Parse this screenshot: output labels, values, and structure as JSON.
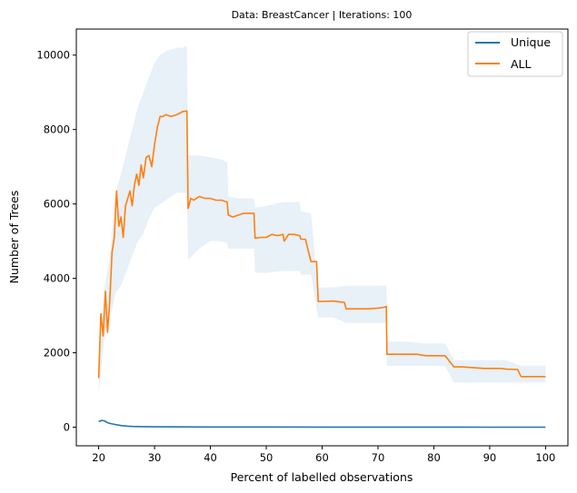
{
  "chart_data": {
    "type": "line",
    "title": "Data: BreastCancer | Iterations: 100",
    "xlabel": "Percent of labelled observations",
    "ylabel": "Number of Trees",
    "xlim": [
      16.0,
      104.0
    ],
    "ylim": [
      -500,
      10700
    ],
    "xticks": [
      20,
      30,
      40,
      50,
      60,
      70,
      80,
      90,
      100
    ],
    "yticks": [
      0,
      2000,
      4000,
      6000,
      8000,
      10000
    ],
    "grid": false,
    "legend": {
      "position": "top-right",
      "entries": [
        "Unique",
        "ALL"
      ]
    },
    "colors": {
      "Unique": "#1f77b4",
      "ALL": "#ff7f0e",
      "band": "#e8f0f8"
    },
    "series": [
      {
        "name": "Unique",
        "x": [
          20,
          20.5,
          21,
          21.5,
          22,
          23,
          24,
          25,
          26,
          28,
          30,
          35,
          40,
          50,
          60,
          70,
          80,
          90,
          100
        ],
        "y": [
          150,
          180,
          170,
          130,
          100,
          70,
          45,
          30,
          20,
          15,
          10,
          8,
          5,
          4,
          3,
          2,
          2,
          1,
          1
        ]
      },
      {
        "name": "ALL",
        "x": [
          20,
          20.4,
          20.8,
          21.2,
          21.6,
          22,
          22.4,
          22.8,
          23.2,
          23.6,
          24,
          24.4,
          24.8,
          25.2,
          25.6,
          26,
          26.4,
          26.8,
          27.2,
          27.6,
          28,
          28.5,
          29,
          29.5,
          30,
          30.5,
          31,
          31.5,
          32,
          33,
          34,
          35,
          35.8,
          36,
          36.5,
          37,
          38,
          39,
          40,
          41,
          42,
          43,
          43.2,
          44,
          45,
          46,
          47.8,
          48,
          49,
          50,
          51,
          52,
          53,
          53.2,
          54,
          55,
          56,
          56.2,
          57,
          58,
          59,
          59.3,
          60,
          62,
          64,
          64.3,
          66,
          68,
          70,
          71,
          71.5,
          71.6,
          73,
          75,
          77,
          78.6,
          80,
          82,
          83.6,
          85,
          87,
          89,
          90,
          92,
          93,
          95,
          95.6,
          98,
          100
        ],
        "y": [
          1320,
          3050,
          2450,
          3650,
          2550,
          3450,
          4700,
          5100,
          6350,
          5400,
          5650,
          5100,
          5950,
          6150,
          6350,
          5950,
          6500,
          6800,
          6500,
          7050,
          6700,
          7250,
          7300,
          7000,
          7600,
          8050,
          8350,
          8350,
          8400,
          8350,
          8400,
          8480,
          8500,
          5880,
          6150,
          6100,
          6200,
          6150,
          6150,
          6100,
          6100,
          6050,
          5700,
          5650,
          5700,
          5750,
          5750,
          5080,
          5100,
          5100,
          5180,
          5150,
          5180,
          5000,
          5180,
          5180,
          5150,
          5050,
          5050,
          4450,
          4450,
          3380,
          3380,
          3390,
          3350,
          3180,
          3180,
          3180,
          3200,
          3220,
          3240,
          1960,
          1960,
          1960,
          1960,
          1920,
          1920,
          1920,
          1620,
          1620,
          1600,
          1580,
          1580,
          1580,
          1560,
          1550,
          1360,
          1360,
          1360
        ]
      }
    ],
    "band": {
      "series": "ALL",
      "x": [
        20,
        21,
        22,
        23,
        24,
        25,
        26,
        27,
        28,
        29,
        30,
        31,
        32,
        33,
        34,
        35,
        35.8,
        36,
        38,
        40,
        42,
        43,
        43.2,
        45,
        47.8,
        48,
        50,
        53,
        56,
        56.2,
        58,
        59.3,
        62,
        64.3,
        68,
        71.5,
        71.6,
        75,
        78.6,
        82,
        83.6,
        88,
        93,
        95.6,
        100
      ],
      "upper": [
        1500,
        3700,
        4600,
        6300,
        6800,
        7400,
        8000,
        8600,
        9000,
        9400,
        9800,
        10000,
        10100,
        10150,
        10200,
        10200,
        10250,
        7300,
        7300,
        7250,
        7200,
        7100,
        6200,
        6150,
        6150,
        5900,
        5950,
        6050,
        6050,
        5800,
        5750,
        3750,
        3750,
        3800,
        3800,
        3800,
        2300,
        2300,
        2250,
        2250,
        1800,
        1800,
        1800,
        1650,
        1650
      ],
      "lower": [
        900,
        2300,
        2900,
        3600,
        3800,
        4200,
        4600,
        5000,
        5200,
        5600,
        5900,
        6000,
        6100,
        6200,
        6300,
        6300,
        6300,
        4500,
        4800,
        5000,
        5000,
        4950,
        4800,
        4800,
        4800,
        4150,
        4150,
        4200,
        4200,
        4100,
        4100,
        2950,
        2950,
        2800,
        2800,
        2800,
        1650,
        1650,
        1650,
        1650,
        1200,
        1200,
        1200,
        1200,
        1200
      ]
    }
  }
}
